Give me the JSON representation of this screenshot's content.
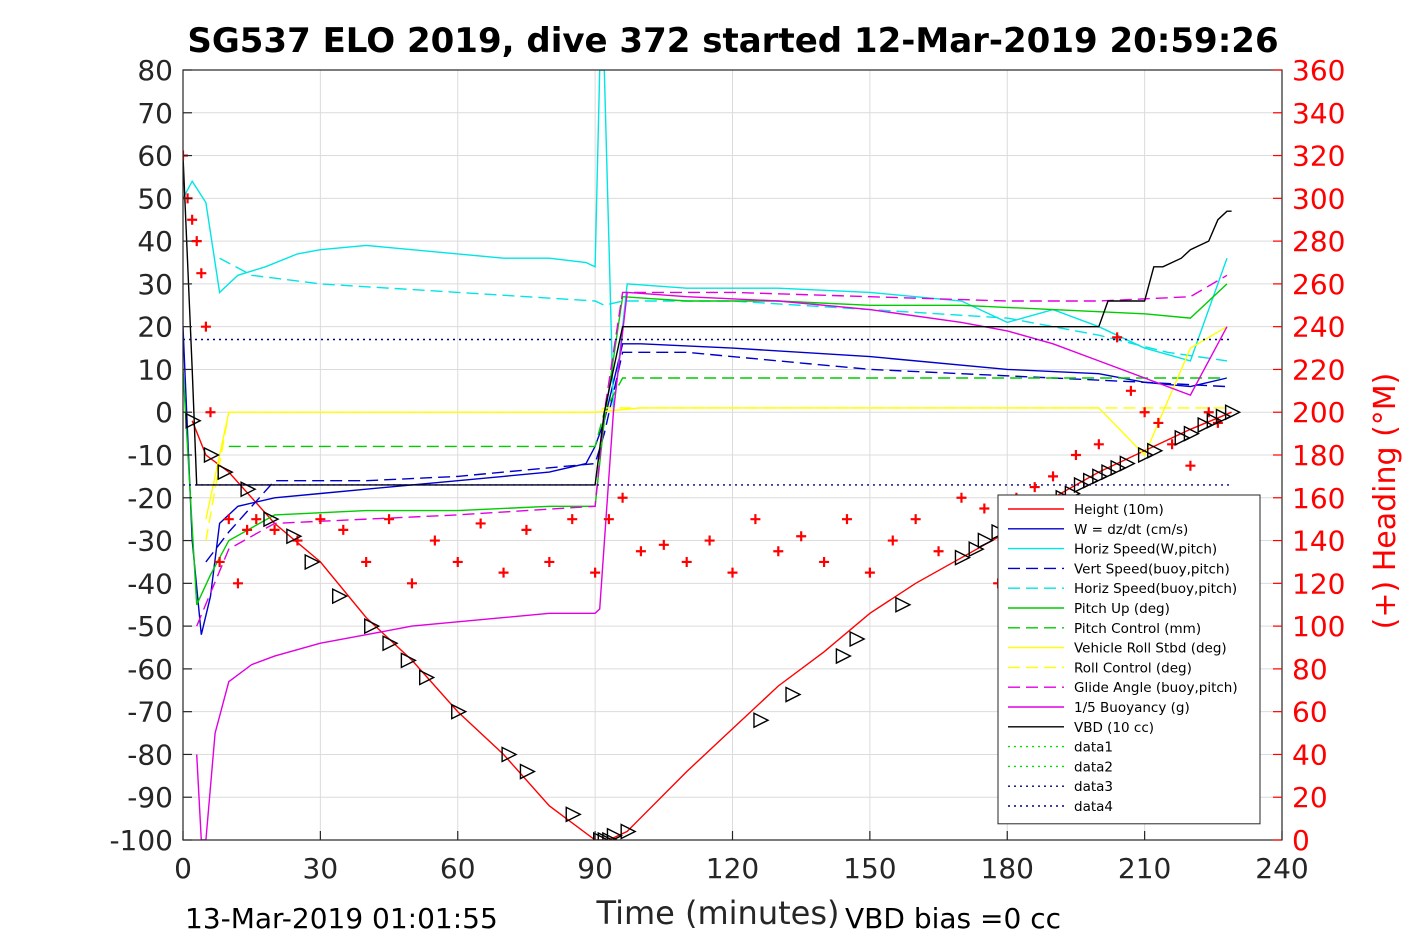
{
  "chart_data": {
    "type": "line",
    "title": "SG537 ELO 2019, dive 372 started 12-Mar-2019 20:59:26",
    "xlabel": "Time (minutes)",
    "ylabel_right": "(+) Heading (°M)",
    "xlim": [
      0,
      240
    ],
    "ylim_left": [
      -100,
      80
    ],
    "ylim_right": [
      0,
      360
    ],
    "x_ticks": [
      "0",
      "30",
      "60",
      "90",
      "120",
      "150",
      "180",
      "210",
      "240"
    ],
    "y_ticks_left": [
      "-100",
      "-90",
      "-80",
      "-70",
      "-60",
      "-50",
      "-40",
      "-30",
      "-20",
      "-10",
      "0",
      "10",
      "20",
      "30",
      "40",
      "50",
      "60",
      "70",
      "80"
    ],
    "y_ticks_right": [
      "0",
      "20",
      "40",
      "60",
      "80",
      "100",
      "120",
      "140",
      "160",
      "180",
      "200",
      "220",
      "240",
      "260",
      "280",
      "300",
      "320",
      "340",
      "360"
    ],
    "grid": true,
    "legend_position": "lower-right",
    "bottom_left_annotation": "13-Mar-2019 01:01:55",
    "bottom_right_annotation": "VBD bias =0 cc",
    "series": [
      {
        "name": "Height (10m)",
        "color": "#ff0000",
        "style": "solid",
        "x": [
          2,
          5,
          10,
          20,
          30,
          40,
          50,
          60,
          70,
          80,
          90,
          93,
          97,
          110,
          120,
          130,
          140,
          150,
          160,
          170,
          180,
          190,
          200,
          210,
          220,
          229
        ],
        "y": [
          -2,
          -10,
          -14,
          -26,
          -35,
          -48,
          -58,
          -70,
          -80,
          -92,
          -100,
          -100,
          -98,
          -84,
          -74,
          -64,
          -56,
          -47,
          -40,
          -34,
          -28,
          -20,
          -14,
          -9,
          -4,
          0
        ]
      },
      {
        "name": "W = dz/dt (cm/s)",
        "color": "#0000cc",
        "style": "solid",
        "x": [
          0,
          2,
          4,
          6,
          8,
          12,
          20,
          30,
          40,
          50,
          60,
          70,
          80,
          88,
          90,
          92,
          96,
          100,
          120,
          150,
          180,
          200,
          210,
          220,
          228
        ],
        "y": [
          20,
          -30,
          -52,
          -43,
          -26,
          -22,
          -20,
          -19,
          -18,
          -17,
          -16,
          -15,
          -14,
          -12,
          -8,
          -2,
          16,
          16,
          15,
          13,
          10,
          9,
          7,
          6,
          8
        ]
      },
      {
        "name": "Horiz Speed(W,pitch)",
        "color": "#00e5e5",
        "style": "solid",
        "x": [
          0,
          2,
          5,
          8,
          12,
          18,
          25,
          30,
          40,
          50,
          60,
          70,
          80,
          88,
          90,
          91,
          92,
          93,
          94,
          97,
          110,
          130,
          150,
          170,
          180,
          190,
          200,
          210,
          220,
          228
        ],
        "y": [
          50,
          54,
          49,
          28,
          32,
          34,
          37,
          38,
          39,
          38,
          37,
          36,
          36,
          35,
          34,
          80,
          80,
          40,
          0,
          30,
          29,
          29,
          28,
          26,
          21,
          24,
          20,
          15,
          12,
          36
        ]
      },
      {
        "name": "Vert Speed(buoy,pitch)",
        "color": "#0000cc",
        "style": "dashed",
        "x": [
          5,
          10,
          20,
          40,
          60,
          80,
          90,
          92,
          96,
          110,
          130,
          150,
          170,
          190,
          210,
          228
        ],
        "y": [
          -35,
          -28,
          -16,
          -16,
          -15,
          -13,
          -12,
          -5,
          14,
          14,
          12,
          10,
          9,
          8,
          7,
          6
        ]
      },
      {
        "name": "Horiz Speed(buoy,pitch)",
        "color": "#00e5e5",
        "style": "dashed",
        "x": [
          8,
          15,
          30,
          60,
          90,
          92,
          96,
          120,
          150,
          180,
          200,
          215,
          228
        ],
        "y": [
          36,
          32,
          30,
          28,
          26,
          25,
          26,
          26,
          24,
          22,
          18,
          14,
          12
        ]
      },
      {
        "name": "Pitch Up (deg)",
        "color": "#00cc00",
        "style": "solid",
        "x": [
          0,
          3,
          6,
          10,
          20,
          40,
          60,
          80,
          90,
          92,
          96,
          110,
          130,
          150,
          170,
          190,
          210,
          220,
          228
        ],
        "y": [
          10,
          -45,
          -38,
          -30,
          -24,
          -23,
          -23,
          -22,
          -22,
          -2,
          27,
          26,
          26,
          25,
          25,
          24,
          23,
          22,
          30
        ]
      },
      {
        "name": "Pitch Control (mm)",
        "color": "#00cc00",
        "style": "dashed",
        "x": [
          10,
          90,
          92,
          96,
          228
        ],
        "y": [
          -8,
          -8,
          0,
          8,
          8
        ]
      },
      {
        "name": "Vehicle Roll Stbd (deg)",
        "color": "#ffff00",
        "style": "solid",
        "x": [
          5,
          10,
          30,
          60,
          90,
          100,
          130,
          160,
          190,
          200,
          210,
          220,
          228
        ],
        "y": [
          -25,
          0,
          0,
          0,
          0,
          1,
          1,
          1,
          1,
          1,
          -10,
          15,
          20
        ]
      },
      {
        "name": "Roll Control (deg)",
        "color": "#ffff00",
        "style": "dashed",
        "x": [
          5,
          10,
          90,
          92,
          100,
          228
        ],
        "y": [
          -30,
          0,
          0,
          1,
          1,
          1
        ]
      },
      {
        "name": "Glide Angle (buoy,pitch)",
        "color": "#e000e0",
        "style": "dashed",
        "x": [
          3,
          10,
          20,
          60,
          90,
          92,
          96,
          120,
          150,
          180,
          200,
          220,
          228
        ],
        "y": [
          -50,
          -32,
          -26,
          -24,
          -22,
          0,
          28,
          28,
          27,
          26,
          26,
          27,
          32
        ]
      },
      {
        "name": "1/5 Buoyancy (g)",
        "color": "#e000e0",
        "style": "solid",
        "x": [
          3,
          4,
          5,
          7,
          10,
          15,
          20,
          30,
          40,
          50,
          60,
          70,
          80,
          90,
          91,
          94,
          97,
          110,
          130,
          150,
          170,
          180,
          190,
          200,
          210,
          220,
          228
        ],
        "y": [
          -80,
          -100,
          -100,
          -75,
          -63,
          -59,
          -57,
          -54,
          -52,
          -50,
          -49,
          -48,
          -47,
          -47,
          -46,
          0,
          28,
          27,
          26,
          24,
          21,
          19,
          16,
          12,
          8,
          4,
          20
        ]
      },
      {
        "name": "VBD (10 cc)",
        "color": "#000000",
        "style": "solid",
        "x": [
          0,
          2,
          3,
          5,
          90,
          92,
          96,
          200,
          202,
          206,
          210,
          212,
          214,
          216,
          218,
          220,
          222,
          224,
          226,
          228,
          229
        ],
        "y": [
          60,
          10,
          -17,
          -17,
          -17,
          0,
          20,
          20,
          26,
          26,
          26,
          34,
          34,
          35,
          36,
          38,
          39,
          40,
          45,
          47,
          47
        ]
      },
      {
        "name": "data1",
        "color": "#00e000",
        "style": "dotted",
        "x": [],
        "y": []
      },
      {
        "name": "data2",
        "color": "#00e000",
        "style": "dotted",
        "x": [],
        "y": []
      },
      {
        "name": "data3",
        "color": "#000080",
        "style": "dotted",
        "x": [
          0,
          229
        ],
        "y": [
          -17,
          -17
        ]
      },
      {
        "name": "data4",
        "color": "#000080",
        "style": "dotted",
        "x": [
          0,
          229
        ],
        "y": [
          17,
          17
        ]
      }
    ],
    "heading_series": {
      "axis": "right",
      "color": "#ff0000",
      "marker": "plus",
      "x": [
        0,
        1,
        2,
        3,
        4,
        5,
        6,
        8,
        10,
        12,
        14,
        16,
        20,
        25,
        30,
        35,
        40,
        45,
        50,
        55,
        60,
        65,
        70,
        75,
        80,
        85,
        90,
        93,
        96,
        100,
        105,
        110,
        115,
        120,
        125,
        130,
        135,
        140,
        145,
        150,
        155,
        160,
        165,
        170,
        175,
        178,
        182,
        186,
        190,
        195,
        200,
        204,
        207,
        210,
        213,
        216,
        220,
        224,
        226
      ],
      "y": [
        320,
        300,
        290,
        280,
        265,
        240,
        200,
        130,
        150,
        120,
        145,
        150,
        145,
        140,
        150,
        145,
        130,
        150,
        120,
        140,
        130,
        148,
        125,
        145,
        130,
        150,
        125,
        150,
        160,
        135,
        138,
        130,
        140,
        125,
        150,
        135,
        142,
        130,
        150,
        125,
        140,
        150,
        135,
        160,
        155,
        120,
        160,
        165,
        170,
        180,
        185,
        235,
        210,
        200,
        195,
        185,
        175,
        200,
        195
      ]
    },
    "markers": {
      "color": "#000000",
      "x": [
        2,
        6,
        9,
        14,
        19,
        24,
        28,
        34,
        41,
        45,
        49,
        53,
        60,
        71,
        75,
        85,
        91,
        92,
        93,
        94,
        97,
        126,
        133,
        144,
        147,
        157,
        170,
        173,
        175,
        178,
        185,
        188,
        192,
        194,
        196,
        198,
        200,
        202,
        204,
        206,
        210,
        212,
        218,
        220,
        223,
        225,
        227,
        229
      ],
      "y": [
        -2,
        -10,
        -14,
        -18,
        -25,
        -29,
        -35,
        -43,
        -50,
        -54,
        -58,
        -62,
        -70,
        -80,
        -84,
        -94,
        -100,
        -100,
        -100,
        -99,
        -98,
        -72,
        -66,
        -57,
        -53,
        -45,
        -34,
        -32,
        -30,
        -28,
        -24,
        -22,
        -20,
        -19,
        -17,
        -16,
        -15,
        -14,
        -13,
        -12,
        -10,
        -9,
        -6,
        -5,
        -3,
        -2,
        -1,
        0
      ]
    }
  }
}
